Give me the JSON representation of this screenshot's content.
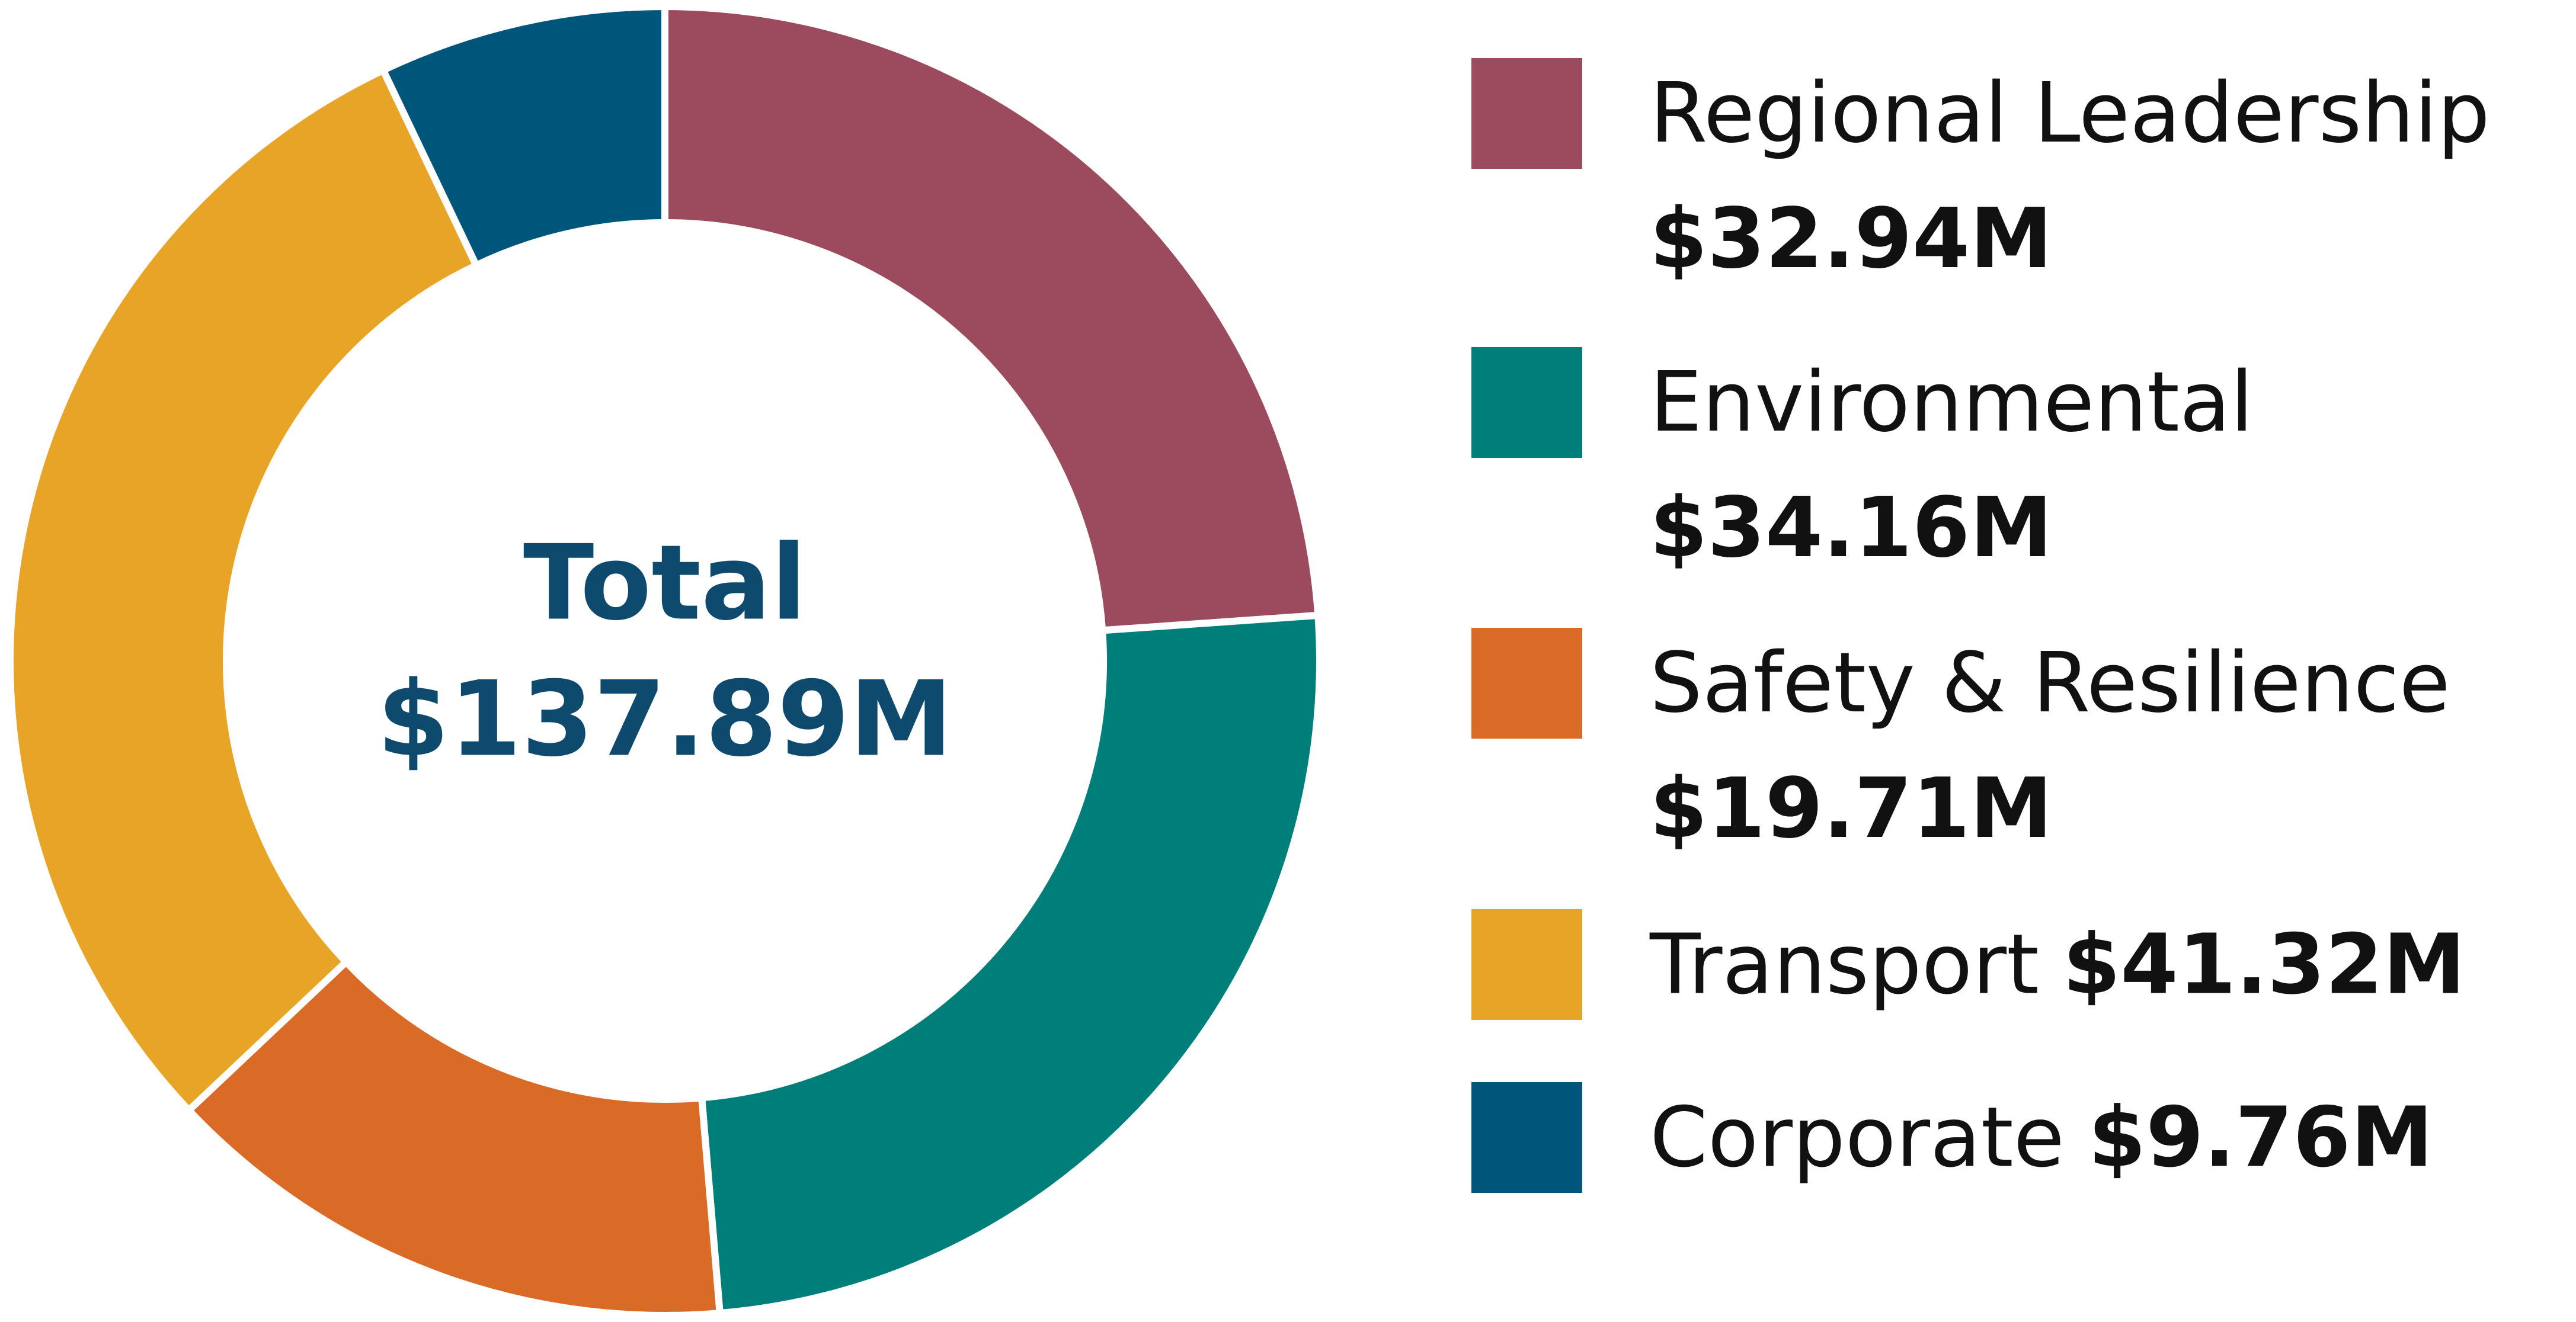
{
  "chart_data": {
    "type": "pie",
    "categories": [
      "Regional Leadership",
      "Environmental",
      "Safety & Resilience",
      "Transport",
      "Corporate"
    ],
    "values": [
      32.94,
      34.16,
      19.71,
      41.32,
      9.76
    ],
    "value_labels": [
      "$32.94M",
      "$34.16M",
      "$19.71M",
      "$41.32M",
      "$9.76M"
    ],
    "colors": [
      "#9c4a5e",
      "#007f7a",
      "#d96b27",
      "#e8a426",
      "#00557a"
    ],
    "center_title": "Total",
    "center_text": "$137.89M",
    "legend": "right"
  }
}
